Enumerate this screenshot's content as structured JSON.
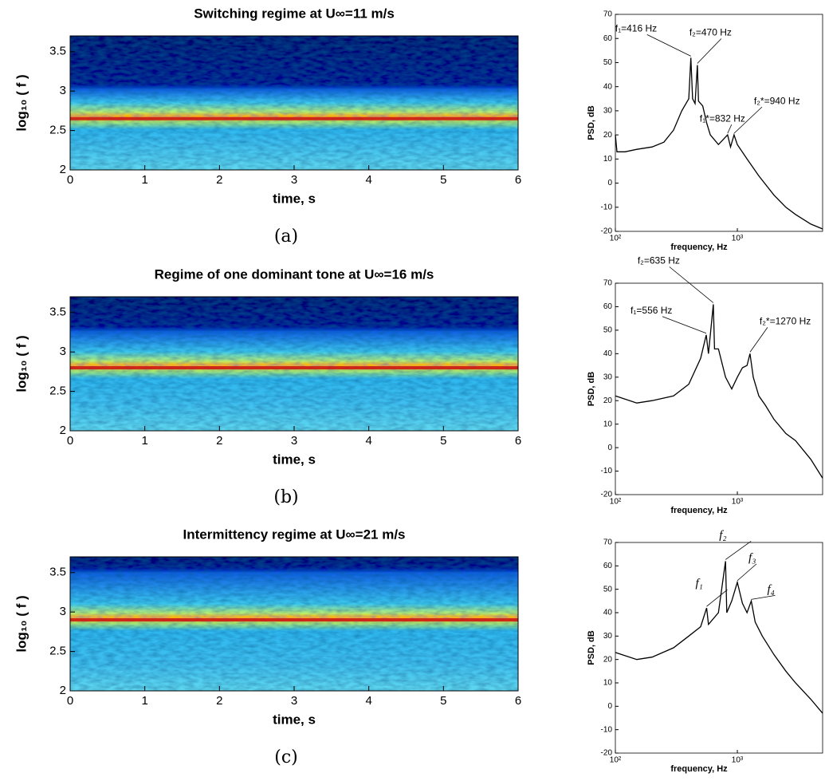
{
  "chart_data": [
    {
      "type": "spectrogram",
      "title": "Switching regime at U∞=11 m/s",
      "xlabel": "time, s",
      "ylabel": "log₁₀ ( f )",
      "panel": "(a)",
      "xlim": [
        0,
        6
      ],
      "xticks": [
        0,
        1,
        2,
        3,
        4,
        5,
        6
      ],
      "ylim": [
        2,
        3.7
      ],
      "yticks": [
        2,
        2.5,
        3,
        3.5
      ],
      "ridge": 2.65
    },
    {
      "type": "spectrogram",
      "title": "Regime of   one  dominant tone at U∞=16 m/s",
      "xlabel": "time, s",
      "ylabel": "log₁₀ ( f )",
      "panel": "(b)",
      "xlim": [
        0,
        6
      ],
      "xticks": [
        0,
        1,
        2,
        3,
        4,
        5,
        6
      ],
      "ylim": [
        2,
        3.7
      ],
      "yticks": [
        2,
        2.5,
        3,
        3.5
      ],
      "ridge": 2.8
    },
    {
      "type": "spectrogram",
      "title": "Intermittency regime at U∞=21 m/s",
      "xlabel": "time, s",
      "ylabel": "log₁₀ ( f )",
      "panel": "(c)",
      "xlim": [
        0,
        6
      ],
      "xticks": [
        0,
        1,
        2,
        3,
        4,
        5,
        6
      ],
      "ylim": [
        2,
        3.7
      ],
      "yticks": [
        2,
        2.5,
        3,
        3.5
      ],
      "ridge": 2.9
    },
    {
      "type": "line",
      "xscale": "log",
      "xlabel": "frequency, Hz",
      "ylabel": "PSD, dB",
      "color": "#000000",
      "xlim": [
        100,
        5000
      ],
      "xticks": [
        {
          "value": 100,
          "label": "10²"
        },
        {
          "value": 1000,
          "label": "10³"
        }
      ],
      "ylim": [
        -20,
        70
      ],
      "yticks": [
        -20,
        -10,
        0,
        10,
        20,
        30,
        40,
        50,
        60,
        70
      ],
      "x": [
        100,
        103,
        120,
        150,
        200,
        250,
        300,
        350,
        400,
        416,
        430,
        450,
        470,
        480,
        520,
        560,
        600,
        700,
        832,
        880,
        940,
        1000,
        1200,
        1500,
        2000,
        2500,
        3000,
        4000,
        5000
      ],
      "values": [
        20,
        13,
        13,
        14,
        15,
        17,
        22,
        30,
        35,
        52,
        35,
        33,
        49,
        34,
        32,
        25,
        20,
        16,
        20,
        15,
        20,
        16,
        10,
        3,
        -5,
        -10,
        -13,
        -17,
        -19
      ],
      "annotations": [
        {
          "text": "f₁=416 Hz",
          "x": 416,
          "y": 52
        },
        {
          "text": "f₂=470 Hz",
          "x": 470,
          "y": 49
        },
        {
          "text": "f₁*=832 Hz",
          "x": 832,
          "y": 20
        },
        {
          "text": "f₂*=940 Hz",
          "x": 940,
          "y": 20
        }
      ]
    },
    {
      "type": "line",
      "xscale": "log",
      "xlabel": "frequency, Hz",
      "ylabel": "PSD, dB",
      "color": "#000000",
      "xlim": [
        100,
        5000
      ],
      "xticks": [
        {
          "value": 100,
          "label": "10²"
        },
        {
          "value": 1000,
          "label": "10³"
        }
      ],
      "ylim": [
        -20,
        70
      ],
      "yticks": [
        -20,
        -10,
        0,
        10,
        20,
        30,
        40,
        50,
        60,
        70
      ],
      "x": [
        100,
        150,
        200,
        300,
        400,
        500,
        556,
        580,
        635,
        650,
        700,
        800,
        900,
        1000,
        1100,
        1200,
        1270,
        1350,
        1500,
        1700,
        2000,
        2500,
        3000,
        4000,
        5000
      ],
      "values": [
        22,
        19,
        20,
        22,
        27,
        38,
        48,
        40,
        61,
        42,
        42,
        30,
        25,
        30,
        34,
        35,
        40,
        30,
        22,
        18,
        12,
        6,
        3,
        -5,
        -13
      ],
      "annotations": [
        {
          "text": "f₂=635 Hz",
          "x": 635,
          "y": 61
        },
        {
          "text": "f₁=556 Hz",
          "x": 556,
          "y": 48
        },
        {
          "text": "f₂*=1270 Hz",
          "x": 1270,
          "y": 40
        }
      ]
    },
    {
      "type": "line",
      "xscale": "log",
      "xlabel": "frequency, Hz",
      "ylabel": "PSD, dB",
      "color": "#000000",
      "xlim": [
        100,
        5000
      ],
      "xticks": [
        {
          "value": 100,
          "label": "10²"
        },
        {
          "value": 1000,
          "label": "10³"
        }
      ],
      "ylim": [
        -20,
        70
      ],
      "yticks": [
        -20,
        -10,
        0,
        10,
        20,
        30,
        40,
        50,
        60,
        70
      ],
      "x": [
        100,
        150,
        200,
        300,
        400,
        500,
        560,
        580,
        700,
        800,
        820,
        900,
        1000,
        1100,
        1200,
        1300,
        1400,
        1600,
        2000,
        2500,
        3000,
        4000,
        5000
      ],
      "values": [
        23,
        20,
        21,
        25,
        30,
        34,
        42,
        35,
        40,
        62,
        40,
        45,
        53,
        44,
        40,
        45,
        36,
        30,
        22,
        15,
        10,
        3,
        -3
      ],
      "annotations": [
        {
          "text": "f₁",
          "x": 560,
          "y": 42
        },
        {
          "text": "f₂",
          "x": 800,
          "y": 62
        },
        {
          "text": "f₃",
          "x": 1000,
          "y": 53
        },
        {
          "text": "f₄",
          "x": 1300,
          "y": 45
        }
      ]
    }
  ]
}
